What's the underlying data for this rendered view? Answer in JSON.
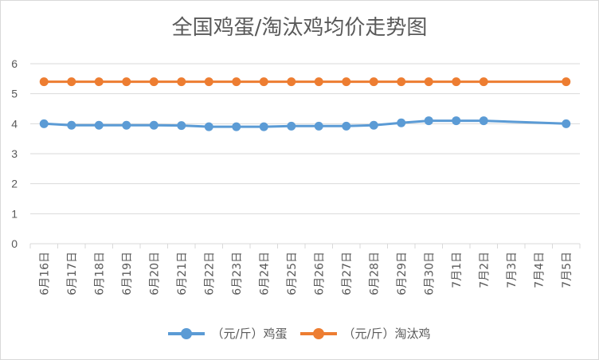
{
  "chart_data": {
    "type": "line",
    "title": "全国鸡蛋/淘汰鸡均价走势图",
    "categories": [
      "6月16日",
      "6月17日",
      "6月18日",
      "6月19日",
      "6月20日",
      "6月21日",
      "6月22日",
      "6月23日",
      "6月24日",
      "6月25日",
      "6月26日",
      "6月27日",
      "6月28日",
      "6月29日",
      "6月30日",
      "7月1日",
      "7月2日",
      "7月3日",
      "7月4日",
      "7月5日"
    ],
    "series": [
      {
        "name": "（元/斤）鸡蛋",
        "color": "#5b9bd5",
        "values": [
          4.0,
          3.95,
          3.95,
          3.95,
          3.95,
          3.94,
          3.9,
          3.9,
          3.9,
          3.92,
          3.92,
          3.92,
          3.95,
          4.03,
          4.1,
          4.1,
          4.1,
          null,
          null,
          4.0
        ]
      },
      {
        "name": "（元/斤）淘汰鸡",
        "color": "#ed7d31",
        "values": [
          5.4,
          5.4,
          5.4,
          5.4,
          5.4,
          5.4,
          5.4,
          5.4,
          5.4,
          5.4,
          5.4,
          5.4,
          5.4,
          5.4,
          5.4,
          5.4,
          5.4,
          null,
          null,
          5.4
        ]
      }
    ],
    "ylim": [
      0,
      6
    ],
    "yticks": [
      0,
      1,
      2,
      3,
      4,
      5,
      6
    ],
    "grid": true,
    "legend": "bottom",
    "gridColor": "#d9d9d9"
  }
}
